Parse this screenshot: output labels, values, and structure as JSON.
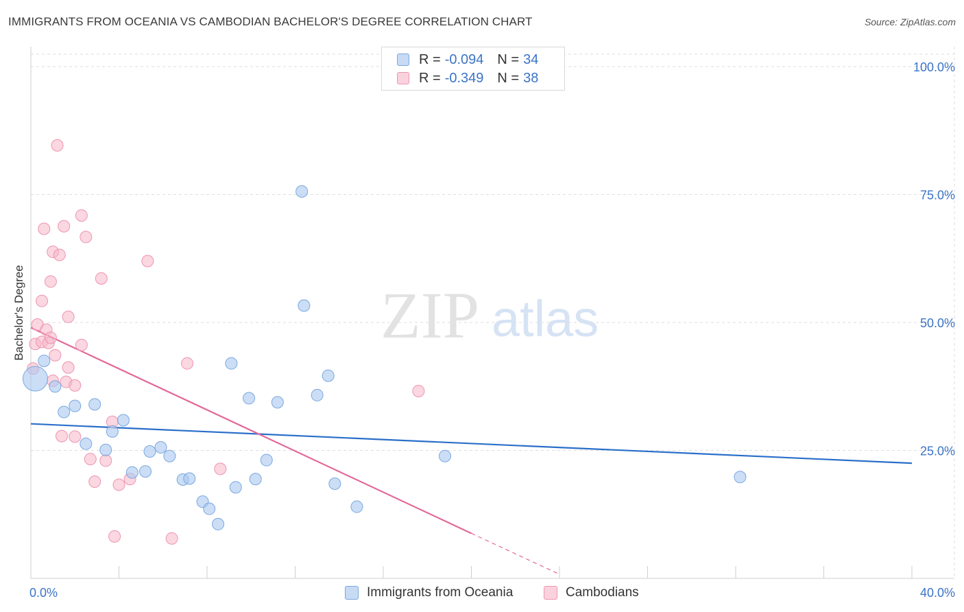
{
  "header": {
    "title": "IMMIGRANTS FROM OCEANIA VS CAMBODIAN BACHELOR'S DEGREE CORRELATION CHART",
    "source": "Source: ZipAtlas.com"
  },
  "watermark": {
    "zip": "ZIP",
    "atlas": "atlas"
  },
  "legend": {
    "rows": [
      {
        "r_label": "R =",
        "r_value": "-0.094",
        "n_label": "N =",
        "n_value": "34",
        "color": "#a9c8f0"
      },
      {
        "r_label": "R =",
        "r_value": "-0.349",
        "n_label": "N =",
        "n_value": "38",
        "color": "#f6b7c9"
      }
    ]
  },
  "bottom_legend": {
    "items": [
      {
        "label": "Immigrants from Oceania",
        "color": "#a9c8f0"
      },
      {
        "label": "Cambodians",
        "color": "#f6b7c9"
      }
    ]
  },
  "colors": {
    "blue_fill": "#a9c8f0",
    "blue_stroke": "#7aa7df",
    "blue_line": "#2a6fc9",
    "pink_fill": "#f6b7c9",
    "pink_stroke": "#ee94b0",
    "pink_line": "#e2699a",
    "axis_text": "#3b74c7",
    "grid": "#dddddd"
  },
  "chart_data": {
    "type": "scatter",
    "title": "IMMIGRANTS FROM OCEANIA VS CAMBODIAN BACHELOR'S DEGREE CORRELATION CHART",
    "xlabel": "",
    "ylabel": "Bachelor's Degree",
    "xlim": [
      0,
      40
    ],
    "ylim": [
      0,
      100
    ],
    "x_tick_labels": [
      "0.0%",
      "40.0%"
    ],
    "y_ticks": [
      25,
      50,
      75,
      100
    ],
    "y_tick_labels": [
      "25.0%",
      "50.0%",
      "75.0%",
      "100.0%"
    ],
    "grid": true,
    "legend_position": "top-center",
    "series": [
      {
        "name": "Immigrants from Oceania",
        "r": -0.094,
        "n": 34,
        "trend": {
          "x": [
            0,
            40
          ],
          "y": [
            30.2,
            22.5
          ]
        },
        "points": [
          {
            "x": 0.2,
            "y": 39.0,
            "size": "large"
          },
          {
            "x": 0.6,
            "y": 42.5
          },
          {
            "x": 1.1,
            "y": 37.5
          },
          {
            "x": 1.5,
            "y": 32.5
          },
          {
            "x": 2.0,
            "y": 33.7
          },
          {
            "x": 2.5,
            "y": 26.3
          },
          {
            "x": 2.9,
            "y": 34.0
          },
          {
            "x": 3.4,
            "y": 25.1
          },
          {
            "x": 3.7,
            "y": 28.7
          },
          {
            "x": 4.2,
            "y": 30.9
          },
          {
            "x": 4.6,
            "y": 20.7
          },
          {
            "x": 5.2,
            "y": 20.9
          },
          {
            "x": 5.4,
            "y": 24.8
          },
          {
            "x": 5.9,
            "y": 25.6
          },
          {
            "x": 6.3,
            "y": 23.9
          },
          {
            "x": 6.9,
            "y": 19.3
          },
          {
            "x": 7.2,
            "y": 19.5
          },
          {
            "x": 7.8,
            "y": 15.0
          },
          {
            "x": 8.1,
            "y": 13.6
          },
          {
            "x": 8.5,
            "y": 10.6
          },
          {
            "x": 9.1,
            "y": 42.0
          },
          {
            "x": 9.3,
            "y": 17.8
          },
          {
            "x": 9.9,
            "y": 35.2
          },
          {
            "x": 10.2,
            "y": 19.4
          },
          {
            "x": 10.7,
            "y": 23.1
          },
          {
            "x": 11.2,
            "y": 34.4
          },
          {
            "x": 12.3,
            "y": 75.6
          },
          {
            "x": 12.4,
            "y": 53.3
          },
          {
            "x": 13.0,
            "y": 35.8
          },
          {
            "x": 13.5,
            "y": 39.6
          },
          {
            "x": 13.8,
            "y": 18.5
          },
          {
            "x": 14.8,
            "y": 14.0
          },
          {
            "x": 18.8,
            "y": 23.9
          },
          {
            "x": 32.2,
            "y": 19.8
          }
        ]
      },
      {
        "name": "Cambodians",
        "r": -0.349,
        "n": 38,
        "trend": {
          "x": [
            0,
            20
          ],
          "y": [
            49.0,
            8.8
          ]
        },
        "trend_dashed": {
          "x": [
            20,
            24
          ],
          "y": [
            8.8,
            0.8
          ]
        },
        "points": [
          {
            "x": 0.1,
            "y": 41.0
          },
          {
            "x": 0.2,
            "y": 45.8
          },
          {
            "x": 0.3,
            "y": 49.6
          },
          {
            "x": 0.5,
            "y": 46.2
          },
          {
            "x": 0.5,
            "y": 54.2
          },
          {
            "x": 0.6,
            "y": 68.3
          },
          {
            "x": 0.7,
            "y": 48.6
          },
          {
            "x": 0.8,
            "y": 46.0
          },
          {
            "x": 0.9,
            "y": 47.0
          },
          {
            "x": 0.9,
            "y": 58.0
          },
          {
            "x": 1.0,
            "y": 63.8
          },
          {
            "x": 1.1,
            "y": 43.6
          },
          {
            "x": 1.2,
            "y": 84.6
          },
          {
            "x": 1.3,
            "y": 63.2
          },
          {
            "x": 1.4,
            "y": 27.8
          },
          {
            "x": 1.5,
            "y": 68.8
          },
          {
            "x": 1.6,
            "y": 38.4
          },
          {
            "x": 1.7,
            "y": 41.2
          },
          {
            "x": 1.7,
            "y": 51.1
          },
          {
            "x": 2.0,
            "y": 27.7
          },
          {
            "x": 2.0,
            "y": 37.7
          },
          {
            "x": 2.3,
            "y": 45.6
          },
          {
            "x": 2.3,
            "y": 70.9
          },
          {
            "x": 2.5,
            "y": 66.7
          },
          {
            "x": 2.7,
            "y": 23.3
          },
          {
            "x": 2.9,
            "y": 18.9
          },
          {
            "x": 3.2,
            "y": 58.6
          },
          {
            "x": 3.4,
            "y": 23.0
          },
          {
            "x": 3.7,
            "y": 30.6
          },
          {
            "x": 3.8,
            "y": 8.2
          },
          {
            "x": 4.0,
            "y": 18.3
          },
          {
            "x": 4.5,
            "y": 19.4
          },
          {
            "x": 5.3,
            "y": 62.0
          },
          {
            "x": 6.4,
            "y": 7.8
          },
          {
            "x": 7.1,
            "y": 42.0
          },
          {
            "x": 8.6,
            "y": 21.4
          },
          {
            "x": 17.6,
            "y": 36.6
          },
          {
            "x": 1.0,
            "y": 38.6
          }
        ]
      }
    ]
  }
}
